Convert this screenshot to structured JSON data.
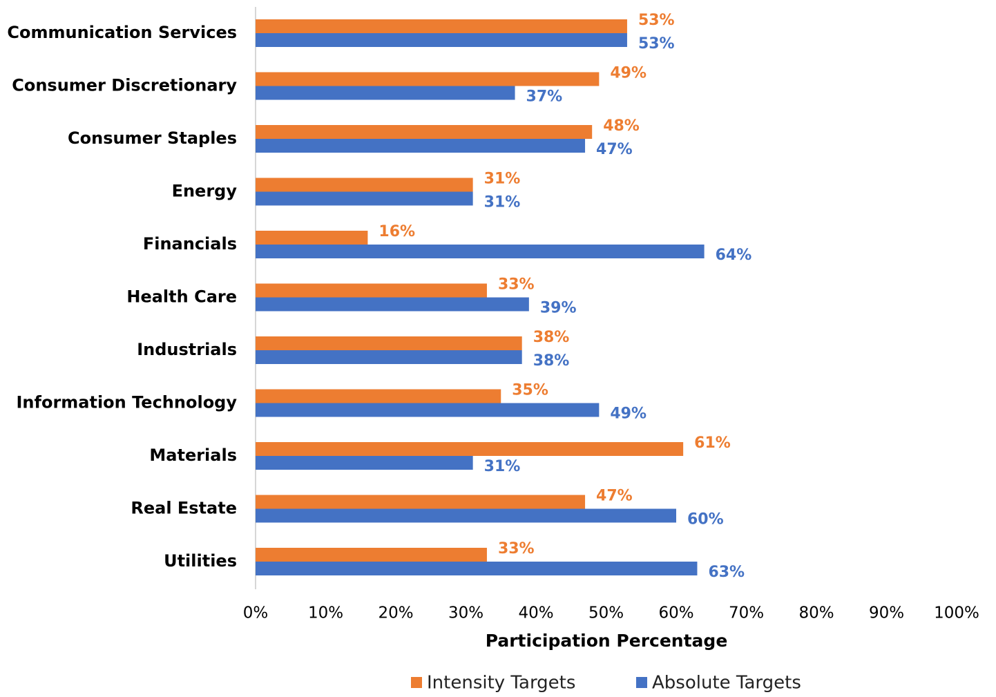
{
  "chart_data": {
    "type": "hbar",
    "x_label": "Participation Percentage",
    "categories": [
      "Communication Services",
      "Consumer Discretionary",
      "Consumer Staples",
      "Energy",
      "Financials",
      "Health Care",
      "Industrials",
      "Information Technology",
      "Materials",
      "Real Estate",
      "Utilities"
    ],
    "series": [
      {
        "name": "Intensity Targets",
        "color": "#ED7D31",
        "values": [
          53,
          49,
          48,
          31,
          16,
          33,
          38,
          35,
          61,
          47,
          33
        ],
        "value_labels": [
          "53%",
          "49%",
          "48%",
          "31%",
          "16%",
          "33%",
          "38%",
          "35%",
          "61%",
          "47%",
          "33%"
        ]
      },
      {
        "name": "Absolute Targets",
        "color": "#4472C4",
        "values": [
          53,
          37,
          47,
          31,
          64,
          39,
          38,
          49,
          31,
          60,
          63
        ],
        "value_labels": [
          "53%",
          "37%",
          "47%",
          "31%",
          "64%",
          "39%",
          "38%",
          "49%",
          "31%",
          "60%",
          "63%"
        ]
      }
    ],
    "xlim": [
      0,
      100
    ],
    "xticks": [
      {
        "value": 0,
        "label": "0%"
      },
      {
        "value": 10,
        "label": "10%"
      },
      {
        "value": 20,
        "label": "20%"
      },
      {
        "value": 30,
        "label": "30%"
      },
      {
        "value": 40,
        "label": "40%"
      },
      {
        "value": 50,
        "label": "50%"
      },
      {
        "value": 60,
        "label": "60%"
      },
      {
        "value": 70,
        "label": "70%"
      },
      {
        "value": 80,
        "label": "80%"
      },
      {
        "value": 90,
        "label": "90%"
      },
      {
        "value": 100,
        "label": "100%"
      }
    ],
    "grid": false,
    "legend": "bottom"
  }
}
